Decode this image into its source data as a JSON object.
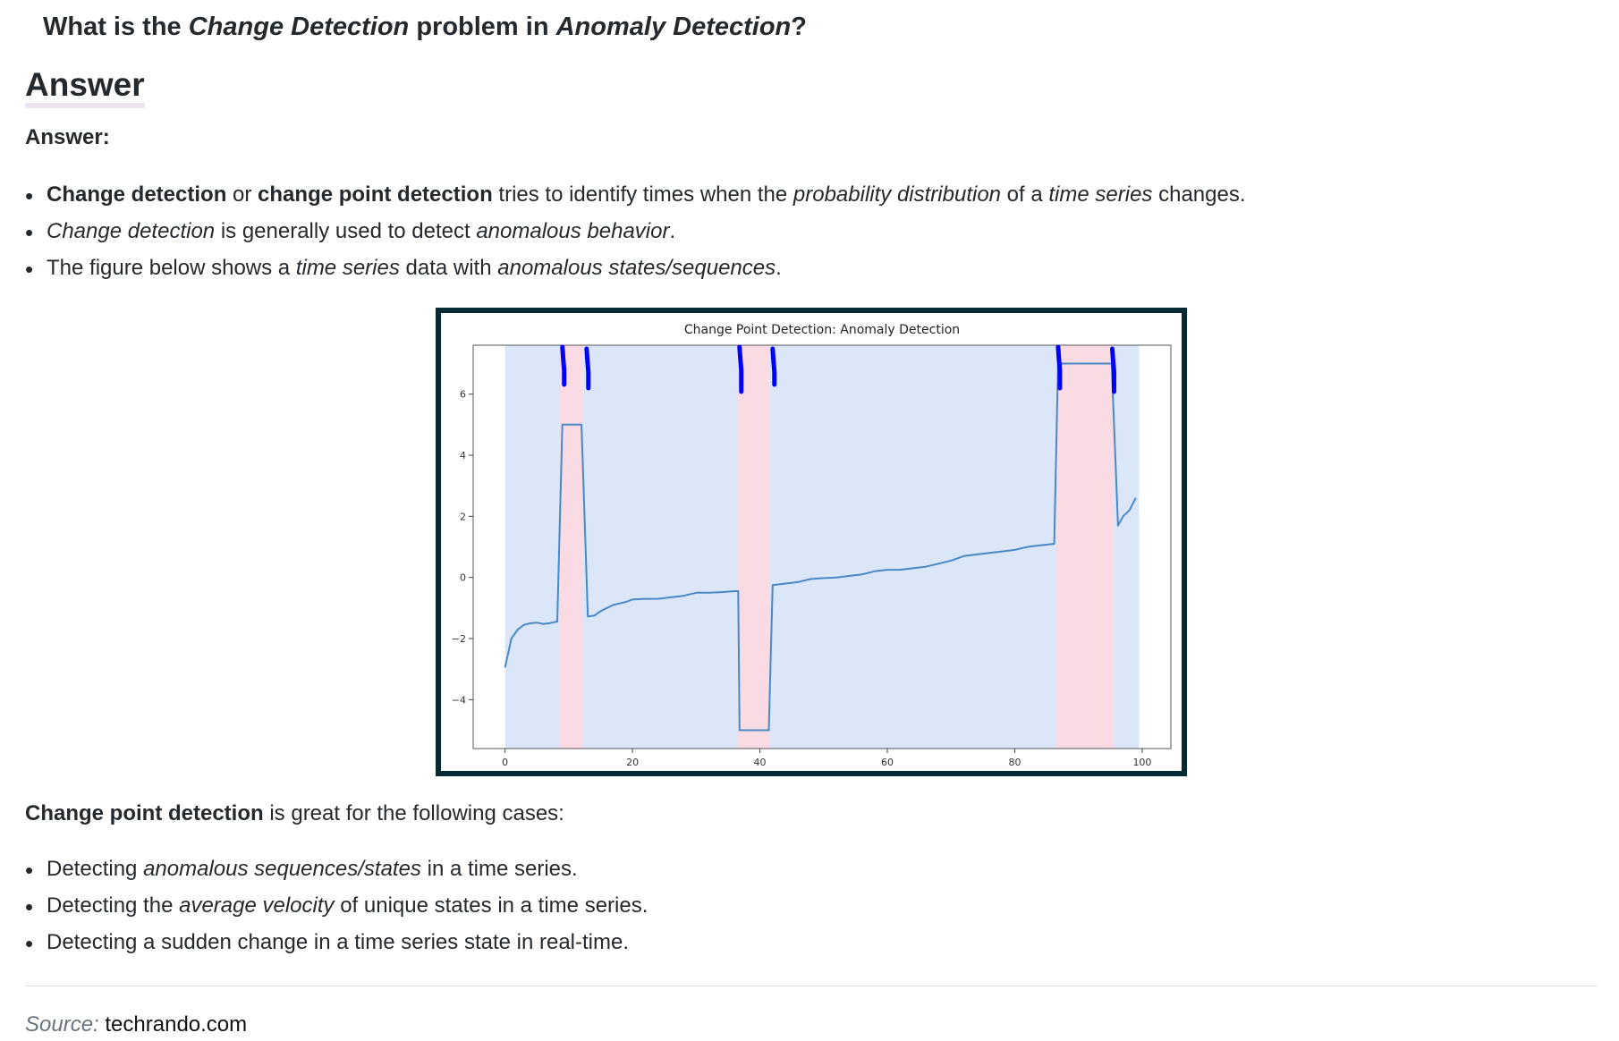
{
  "question": {
    "prefix": "What is the ",
    "em1": "Change Detection",
    "mid": " problem in ",
    "em2": "Anomaly Detection",
    "suffix": "?"
  },
  "answer_heading": "Answer",
  "answer_label": "Answer:",
  "bullets": {
    "b1": {
      "s1": "Change detection",
      "t1": " or ",
      "s2": "change point detection",
      "t2": " tries to identify times when the ",
      "e1": "probability distribution",
      "t3": " of a ",
      "e2": "time series",
      "t4": " changes."
    },
    "b2": {
      "e1": "Change detection",
      "t1": " is generally used to detect ",
      "e2": "anomalous behavior",
      "t2": "."
    },
    "b3": {
      "t1": "The figure below shows a ",
      "e1": "time series",
      "t2": " data with ",
      "e2": "anomalous states/sequences",
      "t3": "."
    }
  },
  "chart_data": {
    "type": "line",
    "title": "Change Point Detection: Anomaly Detection",
    "xlabel": "",
    "ylabel": "",
    "xlim": [
      -5,
      104.5
    ],
    "ylim": [
      -5.6,
      7.6
    ],
    "xticks": [
      "0",
      "20",
      "40",
      "60",
      "80",
      "100"
    ],
    "yticks": [
      "−4",
      "−2",
      "0",
      "2",
      "4",
      "6"
    ],
    "grid": false,
    "normal_region": [
      0,
      99.5
    ],
    "anomaly_regions": [
      [
        8.5,
        12.2
      ],
      [
        36.5,
        41.5
      ],
      [
        86.5,
        95.5
      ]
    ],
    "change_point_markers": [
      9,
      12.8,
      36.8,
      42,
      86.8,
      95.3
    ],
    "colors": {
      "line": "#4a88c6",
      "normal_bg": "#dbe6f8",
      "anomaly_bg": "#fadbe4",
      "markers": "#0000ff"
    },
    "series": [
      {
        "x": [
          0,
          1,
          2,
          3,
          4,
          5,
          6,
          7,
          8,
          8.2,
          9,
          10,
          11,
          12,
          13,
          14,
          15,
          16,
          17,
          18,
          19,
          20,
          22,
          24,
          26,
          28,
          30,
          31,
          32,
          34,
          36,
          36.6,
          36.8,
          41.2,
          41.4,
          42,
          44,
          46,
          48,
          50,
          52,
          54,
          56,
          58,
          60,
          62,
          64,
          66,
          68,
          70,
          72,
          74,
          76,
          78,
          80,
          82,
          84,
          86.2,
          86.8,
          95.2,
          96.2,
          97,
          98,
          99
        ],
        "y": [
          -2.95,
          -2.0,
          -1.7,
          -1.55,
          -1.5,
          -1.48,
          -1.52,
          -1.5,
          -1.45,
          -1.45,
          5.0,
          5.0,
          5.0,
          5.0,
          -1.28,
          -1.25,
          -1.1,
          -1.0,
          -0.9,
          -0.85,
          -0.8,
          -0.72,
          -0.7,
          -0.7,
          -0.65,
          -0.6,
          -0.5,
          -0.5,
          -0.5,
          -0.48,
          -0.45,
          -0.45,
          -5.0,
          -5.0,
          -5.0,
          -0.25,
          -0.2,
          -0.15,
          -0.05,
          -0.02,
          0.0,
          0.05,
          0.1,
          0.2,
          0.25,
          0.25,
          0.3,
          0.35,
          0.45,
          0.55,
          0.7,
          0.75,
          0.8,
          0.85,
          0.9,
          1.0,
          1.05,
          1.1,
          7.0,
          7.0,
          1.7,
          2.0,
          2.2,
          2.6
        ]
      }
    ]
  },
  "para": {
    "s1": "Change point detection",
    "t1": " is great for the following cases:"
  },
  "cases": {
    "c1": {
      "t1": "Detecting ",
      "e1": "anomalous sequences/states",
      "t2": " in a time series."
    },
    "c2": {
      "t1": "Detecting the ",
      "e1": "average velocity",
      "t2": " of unique states in a time series."
    },
    "c3": {
      "t1": "Detecting a sudden change in a time series state in real-time."
    }
  },
  "source": {
    "label": "Source:",
    "value": "techrando.com"
  }
}
